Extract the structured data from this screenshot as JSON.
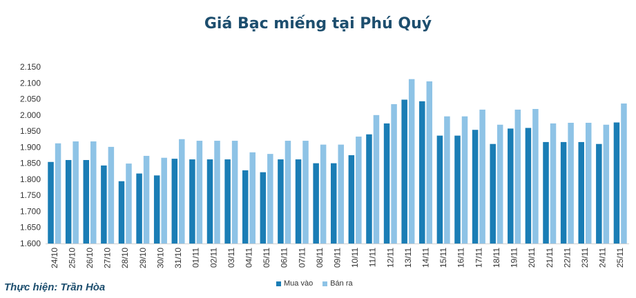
{
  "title": "Giá Bạc miếng tại Phú Quý",
  "credit": "Thực hiện: Trần Hòa",
  "chart_data": {
    "type": "bar",
    "title": "Giá Bạc miếng tại Phú Quý",
    "categories": [
      "24/10",
      "25/10",
      "26/10",
      "27/10",
      "28/10",
      "29/10",
      "30/10",
      "31/10",
      "01/11",
      "02/11",
      "03/11",
      "04/11",
      "05/11",
      "06/11",
      "07/11",
      "08/11",
      "09/11",
      "10/11",
      "11/11",
      "12/11",
      "13/11",
      "14/11",
      "15/11",
      "16/11",
      "17/11",
      "18/11",
      "19/11",
      "20/11",
      "21/11",
      "22/11",
      "23/11",
      "24/11",
      "25/11"
    ],
    "series": [
      {
        "name": "Mua vào",
        "color": "#1a7db5",
        "values": [
          1854,
          1860,
          1860,
          1843,
          1794,
          1818,
          1812,
          1864,
          1862,
          1862,
          1862,
          1828,
          1822,
          1862,
          1862,
          1850,
          1850,
          1875,
          1940,
          1974,
          2048,
          2043,
          1936,
          1936,
          1954,
          1910,
          1958,
          1960,
          1916,
          1916,
          1916,
          1910,
          1977
        ]
      },
      {
        "name": "Bán ra",
        "color": "#8ec3e6",
        "values": [
          1912,
          1918,
          1918,
          1901,
          1849,
          1873,
          1867,
          1925,
          1920,
          1920,
          1920,
          1884,
          1879,
          1920,
          1920,
          1908,
          1908,
          1933,
          2000,
          2034,
          2112,
          2105,
          1996,
          1996,
          2017,
          1970,
          2017,
          2019,
          1974,
          1976,
          1976,
          1970,
          2036
        ]
      }
    ],
    "ylim": [
      1600,
      2150
    ],
    "yticks": [
      "1.600",
      "1.650",
      "1.700",
      "1.750",
      "1.800",
      "1.850",
      "1.900",
      "1.950",
      "2.000",
      "2.050",
      "2.100",
      "2.150"
    ],
    "ytick_values": [
      1600,
      1650,
      1700,
      1750,
      1800,
      1850,
      1900,
      1950,
      2000,
      2050,
      2100,
      2150
    ],
    "grid": false,
    "legend": "bottom"
  }
}
